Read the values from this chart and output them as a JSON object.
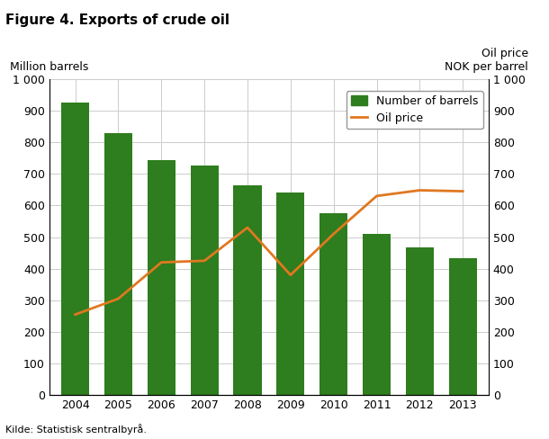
{
  "title": "Figure 4. Exports of crude oil",
  "ylabel_left": "Million barrels",
  "ylabel_right_line1": "Oil price",
  "ylabel_right_line2": "NOK per barrel",
  "source": "Kilde: Statistisk sentralbyrå.",
  "years": [
    2004,
    2005,
    2006,
    2007,
    2008,
    2009,
    2010,
    2011,
    2012,
    2013
  ],
  "barrels": [
    925,
    830,
    742,
    725,
    665,
    642,
    575,
    510,
    468,
    433
  ],
  "oil_price": [
    255,
    305,
    420,
    425,
    530,
    380,
    510,
    630,
    648,
    645
  ],
  "bar_color": "#2e7d1e",
  "line_color": "#e07820",
  "ylim": [
    0,
    1000
  ],
  "ytick_values": [
    0,
    100,
    200,
    300,
    400,
    500,
    600,
    700,
    800,
    900,
    1000
  ],
  "ytick_labels": [
    "0",
    "100",
    "200",
    "300",
    "400",
    "500",
    "600",
    "700",
    "800",
    "900",
    "1 000"
  ],
  "legend_barrels": "Number of barrels",
  "legend_oil": "Oil price",
  "background_color": "#ffffff",
  "grid_color": "#cccccc"
}
